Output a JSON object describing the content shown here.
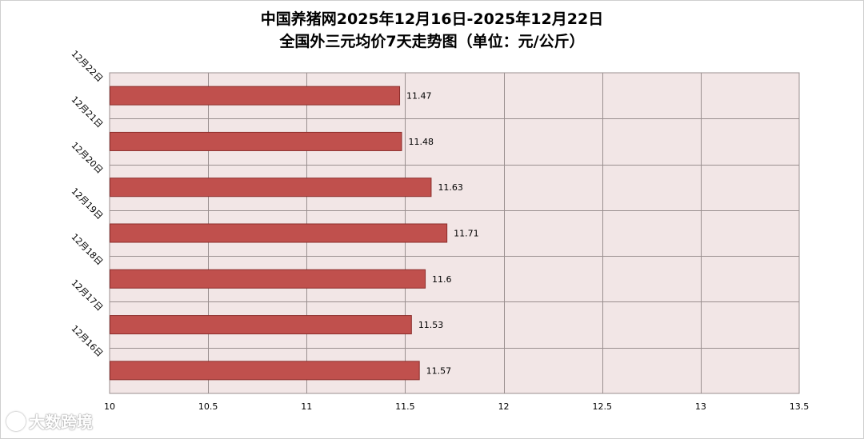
{
  "title": {
    "line1": "中国养猪网2025年12月16日-2025年12月22日",
    "line2": "全国外三元均价7天走势图（单位：元/公斤）"
  },
  "watermark": {
    "text": "大数跨境"
  },
  "colors": {
    "bar": "#c0504d",
    "bar_border": "#8c2d2b",
    "plot_bg": "#f2e6e6",
    "grid": "#9a8f8f"
  },
  "chart_data": {
    "type": "bar",
    "orientation": "horizontal",
    "categories": [
      "12月22日",
      "12月21日",
      "12月20日",
      "12月19日",
      "12月18日",
      "12月17日",
      "12月16日"
    ],
    "values": [
      11.47,
      11.48,
      11.63,
      11.71,
      11.6,
      11.53,
      11.57
    ],
    "value_labels": [
      "11.47",
      "11.48",
      "11.63",
      "11.71",
      "11.6",
      "11.53",
      "11.57"
    ],
    "xlim": [
      10,
      13.5
    ],
    "xticks": [
      "10",
      "10.5",
      "11",
      "11.5",
      "12",
      "12.5",
      "13",
      "13.5"
    ],
    "title": "中国养猪网2025年12月16日-2025年12月22日 全国外三元均价7天走势图（单位：元/公斤）",
    "xlabel": "",
    "ylabel": "",
    "grid": true,
    "legend": false
  }
}
